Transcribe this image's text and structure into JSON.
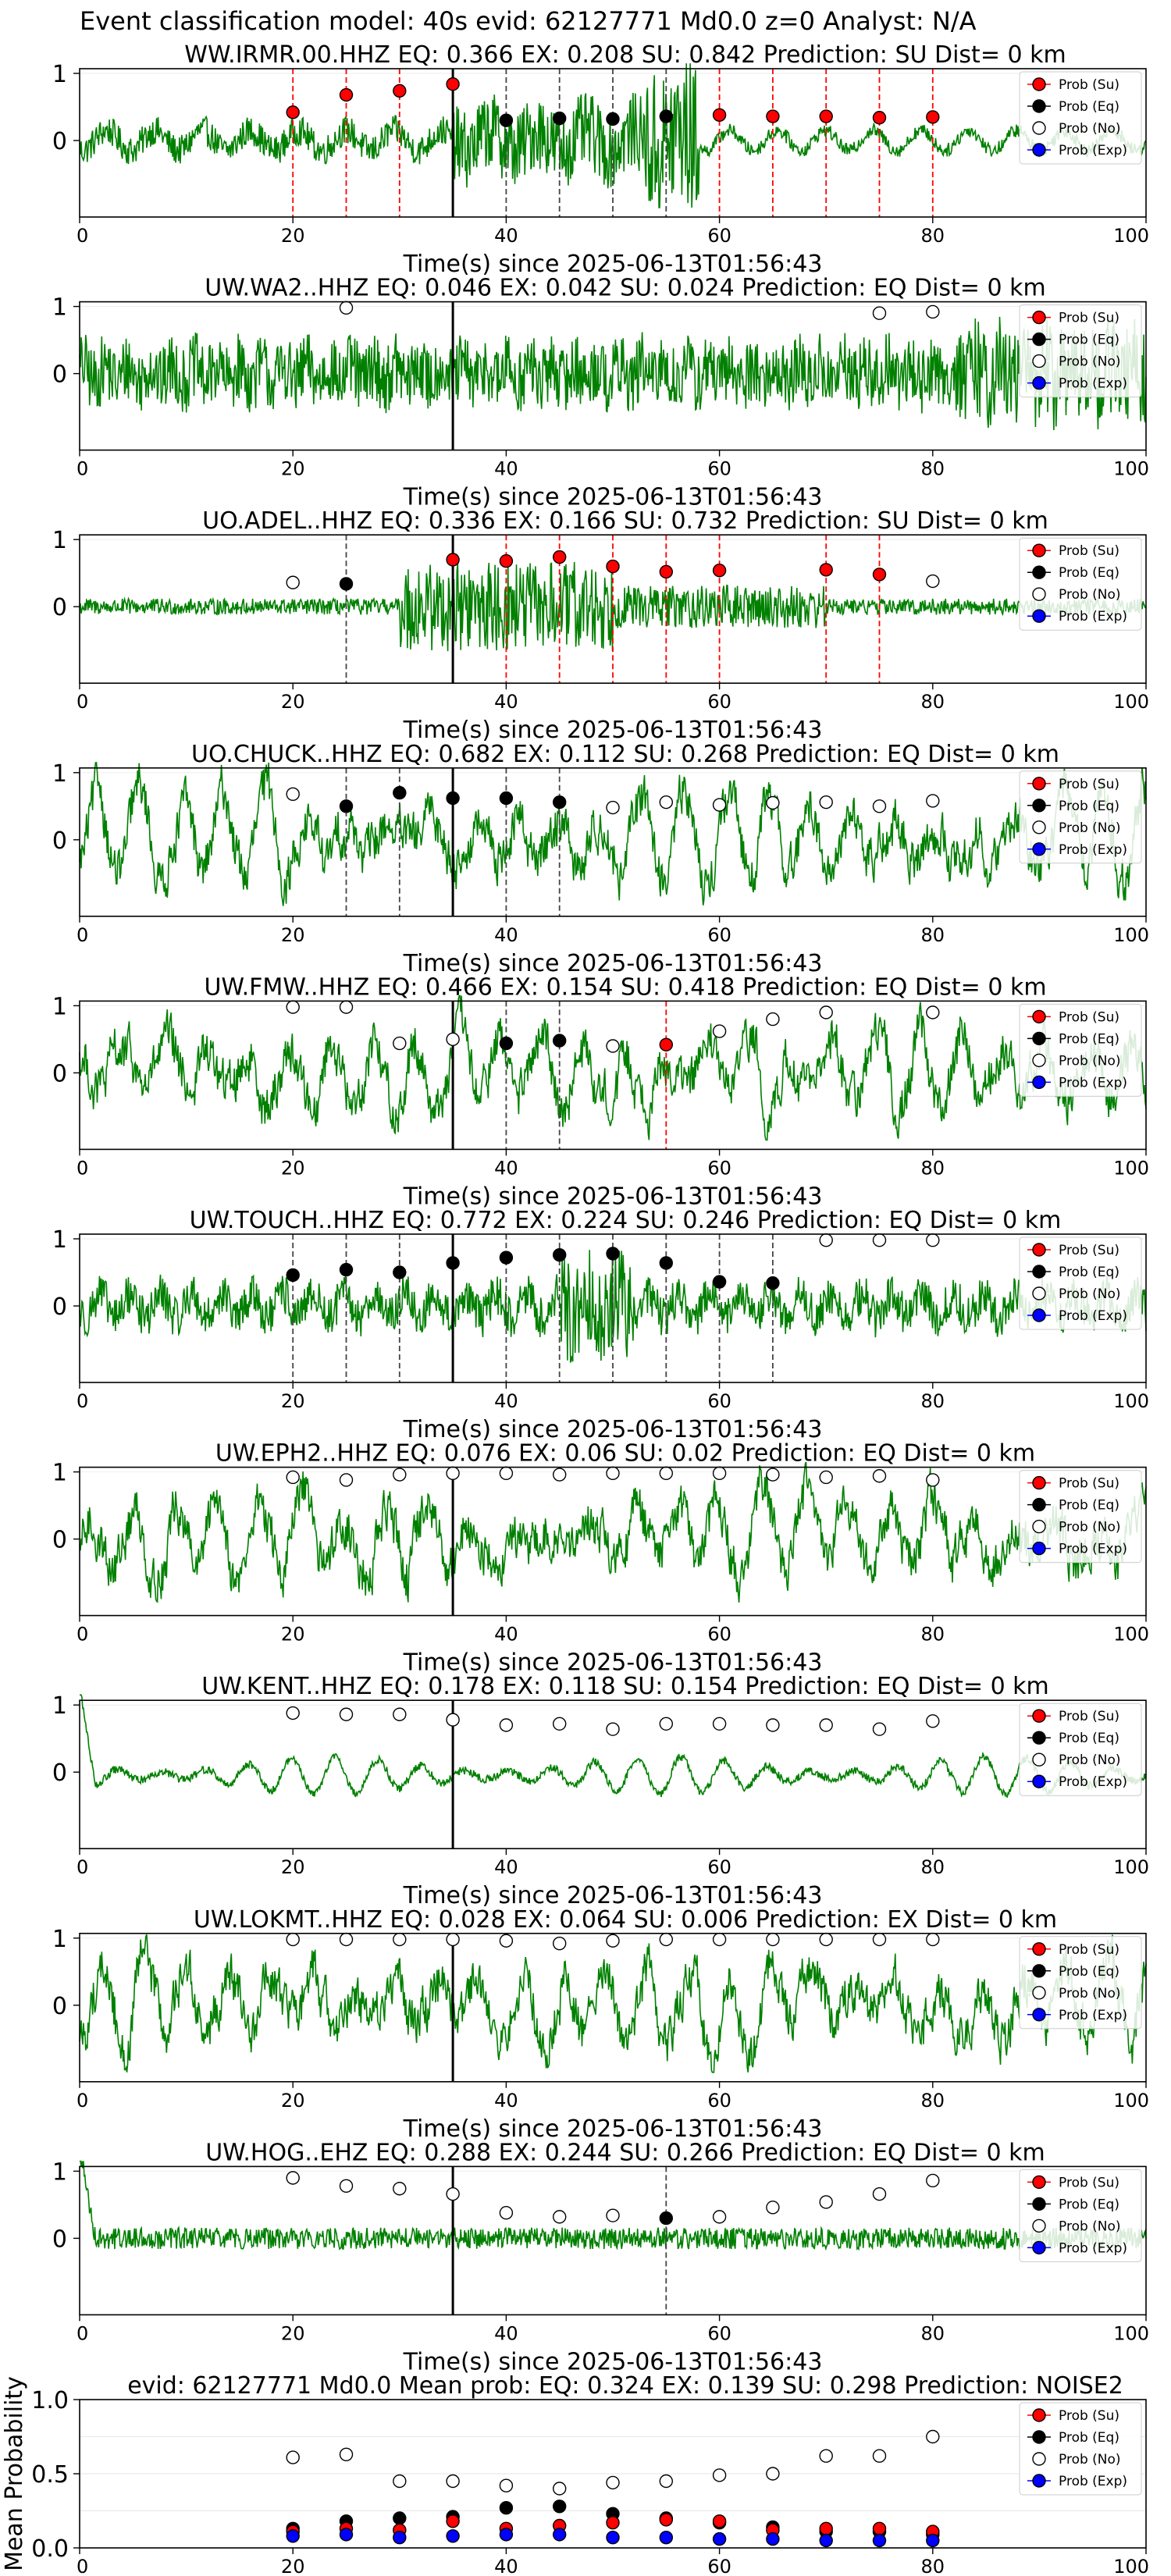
{
  "figure_title": "Event classification model: 40s evid: 62127771 Md0.0 z=0 Analyst: N/A",
  "xlabel": "Time(s) since 2025-06-13T01:56:43",
  "legend": [
    "Prob (Su)",
    "Prob (Eq)",
    "Prob (No)",
    "Prob (Exp)"
  ],
  "colors": {
    "su": "#ff0000",
    "eq": "#000000",
    "no": "#ffffff",
    "exp": "#0000ff",
    "wave": "#008000",
    "line_su": "#ff0000",
    "line_eq": "#444444",
    "origin": "#000000"
  },
  "chart_data": [
    {
      "type": "line",
      "title": "WW.IRMR.00.HHZ   EQ: 0.366  EX: 0.208  SU: 0.842   Prediction: SU    Dist= 0 km",
      "xlim": [
        0,
        100
      ],
      "xticks": [
        0,
        20,
        40,
        60,
        80,
        100
      ],
      "yticks": [
        "0",
        "1"
      ],
      "origin_x": 35,
      "waveform_style": "irmr",
      "points": [
        {
          "x": 20,
          "y": 0.42,
          "cls": "su"
        },
        {
          "x": 25,
          "y": 0.68,
          "cls": "su"
        },
        {
          "x": 30,
          "y": 0.74,
          "cls": "su"
        },
        {
          "x": 35,
          "y": 0.84,
          "cls": "su"
        },
        {
          "x": 40,
          "y": 0.3,
          "cls": "eq"
        },
        {
          "x": 45,
          "y": 0.33,
          "cls": "eq"
        },
        {
          "x": 50,
          "y": 0.32,
          "cls": "eq"
        },
        {
          "x": 55,
          "y": 0.36,
          "cls": "eq"
        },
        {
          "x": 60,
          "y": 0.38,
          "cls": "su"
        },
        {
          "x": 65,
          "y": 0.36,
          "cls": "su"
        },
        {
          "x": 70,
          "y": 0.36,
          "cls": "su"
        },
        {
          "x": 75,
          "y": 0.34,
          "cls": "su"
        },
        {
          "x": 80,
          "y": 0.35,
          "cls": "su"
        }
      ],
      "vlines": [
        {
          "x": 20,
          "cls": "su"
        },
        {
          "x": 25,
          "cls": "su"
        },
        {
          "x": 30,
          "cls": "su"
        },
        {
          "x": 35,
          "cls": "su"
        },
        {
          "x": 40,
          "cls": "eq"
        },
        {
          "x": 45,
          "cls": "eq"
        },
        {
          "x": 50,
          "cls": "eq"
        },
        {
          "x": 55,
          "cls": "eq"
        },
        {
          "x": 60,
          "cls": "su"
        },
        {
          "x": 65,
          "cls": "su"
        },
        {
          "x": 70,
          "cls": "su"
        },
        {
          "x": 75,
          "cls": "su"
        },
        {
          "x": 80,
          "cls": "su"
        }
      ]
    },
    {
      "type": "line",
      "title": "UW.WA2..HHZ   EQ: 0.046  EX: 0.042  SU: 0.024   Prediction: EQ    Dist= 0 km",
      "xlim": [
        0,
        100
      ],
      "xticks": [
        0,
        20,
        40,
        60,
        80,
        100
      ],
      "yticks": [
        "0",
        "1"
      ],
      "origin_x": 35,
      "waveform_style": "noisy",
      "points": [
        {
          "x": 25,
          "y": 0.98,
          "cls": "no"
        },
        {
          "x": 75,
          "y": 0.9,
          "cls": "no"
        },
        {
          "x": 80,
          "y": 0.92,
          "cls": "no"
        }
      ],
      "vlines": []
    },
    {
      "type": "line",
      "title": "UO.ADEL..HHZ   EQ: 0.336  EX: 0.166  SU: 0.732   Prediction: SU    Dist= 0 km",
      "xlim": [
        0,
        100
      ],
      "xticks": [
        0,
        20,
        40,
        60,
        80,
        100
      ],
      "yticks": [
        "0",
        "1"
      ],
      "origin_x": 35,
      "waveform_style": "adel",
      "points": [
        {
          "x": 20,
          "y": 0.36,
          "cls": "no"
        },
        {
          "x": 25,
          "y": 0.34,
          "cls": "eq"
        },
        {
          "x": 35,
          "y": 0.7,
          "cls": "su"
        },
        {
          "x": 40,
          "y": 0.68,
          "cls": "su"
        },
        {
          "x": 45,
          "y": 0.74,
          "cls": "su"
        },
        {
          "x": 50,
          "y": 0.6,
          "cls": "su"
        },
        {
          "x": 55,
          "y": 0.52,
          "cls": "su"
        },
        {
          "x": 60,
          "y": 0.54,
          "cls": "su"
        },
        {
          "x": 70,
          "y": 0.55,
          "cls": "su"
        },
        {
          "x": 75,
          "y": 0.48,
          "cls": "su"
        },
        {
          "x": 80,
          "y": 0.38,
          "cls": "no"
        }
      ],
      "vlines": [
        {
          "x": 25,
          "cls": "eq"
        },
        {
          "x": 40,
          "cls": "su"
        },
        {
          "x": 45,
          "cls": "su"
        },
        {
          "x": 50,
          "cls": "su"
        },
        {
          "x": 55,
          "cls": "su"
        },
        {
          "x": 60,
          "cls": "su"
        },
        {
          "x": 70,
          "cls": "su"
        },
        {
          "x": 75,
          "cls": "su"
        }
      ]
    },
    {
      "type": "line",
      "title": "UO.CHUCK..HHZ   EQ: 0.682  EX: 0.112  SU: 0.268   Prediction: EQ    Dist= 0 km",
      "xlim": [
        0,
        100
      ],
      "xticks": [
        0,
        20,
        40,
        60,
        80,
        100
      ],
      "yticks": [
        "0",
        "1"
      ],
      "origin_x": 35,
      "waveform_style": "slow",
      "points": [
        {
          "x": 20,
          "y": 0.68,
          "cls": "no"
        },
        {
          "x": 25,
          "y": 0.5,
          "cls": "eq"
        },
        {
          "x": 30,
          "y": 0.7,
          "cls": "eq"
        },
        {
          "x": 35,
          "y": 0.62,
          "cls": "eq"
        },
        {
          "x": 40,
          "y": 0.62,
          "cls": "eq"
        },
        {
          "x": 45,
          "y": 0.56,
          "cls": "eq"
        },
        {
          "x": 50,
          "y": 0.48,
          "cls": "no"
        },
        {
          "x": 55,
          "y": 0.56,
          "cls": "no"
        },
        {
          "x": 60,
          "y": 0.52,
          "cls": "no"
        },
        {
          "x": 65,
          "y": 0.55,
          "cls": "no"
        },
        {
          "x": 70,
          "y": 0.56,
          "cls": "no"
        },
        {
          "x": 75,
          "y": 0.5,
          "cls": "no"
        },
        {
          "x": 80,
          "y": 0.58,
          "cls": "no"
        }
      ],
      "vlines": [
        {
          "x": 25,
          "cls": "eq"
        },
        {
          "x": 30,
          "cls": "eq"
        },
        {
          "x": 40,
          "cls": "eq"
        },
        {
          "x": 45,
          "cls": "eq"
        }
      ]
    },
    {
      "type": "line",
      "title": "UW.FMW..HHZ   EQ: 0.466  EX: 0.154  SU: 0.418   Prediction: EQ    Dist= 0 km",
      "xlim": [
        0,
        100
      ],
      "xticks": [
        0,
        20,
        40,
        60,
        80,
        100
      ],
      "yticks": [
        "0",
        "1"
      ],
      "origin_x": 35,
      "waveform_style": "slow",
      "points": [
        {
          "x": 20,
          "y": 0.98,
          "cls": "no"
        },
        {
          "x": 25,
          "y": 0.98,
          "cls": "no"
        },
        {
          "x": 30,
          "y": 0.44,
          "cls": "no"
        },
        {
          "x": 35,
          "y": 0.5,
          "cls": "no"
        },
        {
          "x": 40,
          "y": 0.44,
          "cls": "eq"
        },
        {
          "x": 45,
          "y": 0.48,
          "cls": "eq"
        },
        {
          "x": 50,
          "y": 0.4,
          "cls": "no"
        },
        {
          "x": 55,
          "y": 0.42,
          "cls": "su"
        },
        {
          "x": 60,
          "y": 0.62,
          "cls": "no"
        },
        {
          "x": 65,
          "y": 0.8,
          "cls": "no"
        },
        {
          "x": 70,
          "y": 0.9,
          "cls": "no"
        },
        {
          "x": 80,
          "y": 0.9,
          "cls": "no"
        }
      ],
      "vlines": [
        {
          "x": 40,
          "cls": "eq"
        },
        {
          "x": 45,
          "cls": "eq"
        },
        {
          "x": 55,
          "cls": "su"
        }
      ]
    },
    {
      "type": "line",
      "title": "UW.TOUCH..HHZ   EQ: 0.772  EX: 0.224  SU: 0.246   Prediction: EQ    Dist= 0 km",
      "xlim": [
        0,
        100
      ],
      "xticks": [
        0,
        20,
        40,
        60,
        80,
        100
      ],
      "yticks": [
        "0",
        "1"
      ],
      "origin_x": 35,
      "waveform_style": "touch",
      "points": [
        {
          "x": 20,
          "y": 0.46,
          "cls": "eq"
        },
        {
          "x": 25,
          "y": 0.54,
          "cls": "eq"
        },
        {
          "x": 30,
          "y": 0.5,
          "cls": "eq"
        },
        {
          "x": 35,
          "y": 0.64,
          "cls": "eq"
        },
        {
          "x": 40,
          "y": 0.72,
          "cls": "eq"
        },
        {
          "x": 45,
          "y": 0.76,
          "cls": "eq"
        },
        {
          "x": 50,
          "y": 0.78,
          "cls": "eq"
        },
        {
          "x": 55,
          "y": 0.64,
          "cls": "eq"
        },
        {
          "x": 60,
          "y": 0.36,
          "cls": "eq"
        },
        {
          "x": 65,
          "y": 0.34,
          "cls": "eq"
        },
        {
          "x": 70,
          "y": 0.98,
          "cls": "no"
        },
        {
          "x": 75,
          "y": 0.98,
          "cls": "no"
        },
        {
          "x": 80,
          "y": 0.98,
          "cls": "no"
        }
      ],
      "vlines": [
        {
          "x": 20,
          "cls": "eq"
        },
        {
          "x": 25,
          "cls": "eq"
        },
        {
          "x": 30,
          "cls": "eq"
        },
        {
          "x": 40,
          "cls": "eq"
        },
        {
          "x": 45,
          "cls": "eq"
        },
        {
          "x": 50,
          "cls": "eq"
        },
        {
          "x": 55,
          "cls": "eq"
        },
        {
          "x": 60,
          "cls": "eq"
        },
        {
          "x": 65,
          "cls": "eq"
        }
      ]
    },
    {
      "type": "line",
      "title": "UW.EPH2..HHZ   EQ: 0.076  EX: 0.06  SU: 0.02   Prediction: EQ    Dist= 0 km",
      "xlim": [
        0,
        100
      ],
      "xticks": [
        0,
        20,
        40,
        60,
        80,
        100
      ],
      "yticks": [
        "0",
        "1"
      ],
      "origin_x": 35,
      "waveform_style": "slow",
      "points": [
        {
          "x": 20,
          "y": 0.92,
          "cls": "no"
        },
        {
          "x": 25,
          "y": 0.88,
          "cls": "no"
        },
        {
          "x": 30,
          "y": 0.96,
          "cls": "no"
        },
        {
          "x": 35,
          "y": 0.98,
          "cls": "no"
        },
        {
          "x": 40,
          "y": 0.98,
          "cls": "no"
        },
        {
          "x": 45,
          "y": 0.96,
          "cls": "no"
        },
        {
          "x": 50,
          "y": 0.98,
          "cls": "no"
        },
        {
          "x": 55,
          "y": 0.98,
          "cls": "no"
        },
        {
          "x": 60,
          "y": 0.98,
          "cls": "no"
        },
        {
          "x": 65,
          "y": 0.96,
          "cls": "no"
        },
        {
          "x": 70,
          "y": 0.92,
          "cls": "no"
        },
        {
          "x": 75,
          "y": 0.94,
          "cls": "no"
        },
        {
          "x": 80,
          "y": 0.88,
          "cls": "no"
        }
      ],
      "vlines": []
    },
    {
      "type": "line",
      "title": "UW.KENT..HHZ   EQ: 0.178  EX: 0.118  SU: 0.154   Prediction: EQ    Dist= 0 km",
      "xlim": [
        0,
        100
      ],
      "xticks": [
        0,
        20,
        40,
        60,
        80,
        100
      ],
      "yticks": [
        "0",
        "1"
      ],
      "origin_x": 35,
      "waveform_style": "kent",
      "points": [
        {
          "x": 20,
          "y": 0.88,
          "cls": "no"
        },
        {
          "x": 25,
          "y": 0.86,
          "cls": "no"
        },
        {
          "x": 30,
          "y": 0.86,
          "cls": "no"
        },
        {
          "x": 35,
          "y": 0.78,
          "cls": "no"
        },
        {
          "x": 40,
          "y": 0.7,
          "cls": "no"
        },
        {
          "x": 45,
          "y": 0.72,
          "cls": "no"
        },
        {
          "x": 50,
          "y": 0.64,
          "cls": "no"
        },
        {
          "x": 55,
          "y": 0.72,
          "cls": "no"
        },
        {
          "x": 60,
          "y": 0.72,
          "cls": "no"
        },
        {
          "x": 65,
          "y": 0.7,
          "cls": "no"
        },
        {
          "x": 70,
          "y": 0.7,
          "cls": "no"
        },
        {
          "x": 75,
          "y": 0.64,
          "cls": "no"
        },
        {
          "x": 80,
          "y": 0.76,
          "cls": "no"
        }
      ],
      "vlines": []
    },
    {
      "type": "line",
      "title": "UW.LOKMT..HHZ   EQ: 0.028  EX: 0.064  SU: 0.006   Prediction: EX    Dist= 0 km",
      "xlim": [
        0,
        100
      ],
      "xticks": [
        0,
        20,
        40,
        60,
        80,
        100
      ],
      "yticks": [
        "0",
        "1"
      ],
      "origin_x": 35,
      "waveform_style": "slow",
      "points": [
        {
          "x": 20,
          "y": 0.98,
          "cls": "no"
        },
        {
          "x": 25,
          "y": 0.98,
          "cls": "no"
        },
        {
          "x": 30,
          "y": 0.98,
          "cls": "no"
        },
        {
          "x": 35,
          "y": 0.98,
          "cls": "no"
        },
        {
          "x": 40,
          "y": 0.96,
          "cls": "no"
        },
        {
          "x": 45,
          "y": 0.92,
          "cls": "no"
        },
        {
          "x": 50,
          "y": 0.96,
          "cls": "no"
        },
        {
          "x": 55,
          "y": 0.98,
          "cls": "no"
        },
        {
          "x": 60,
          "y": 0.98,
          "cls": "no"
        },
        {
          "x": 65,
          "y": 0.98,
          "cls": "no"
        },
        {
          "x": 70,
          "y": 0.98,
          "cls": "no"
        },
        {
          "x": 75,
          "y": 0.98,
          "cls": "no"
        },
        {
          "x": 80,
          "y": 0.98,
          "cls": "no"
        }
      ],
      "vlines": []
    },
    {
      "type": "line",
      "title": "UW.HOG..EHZ   EQ: 0.288  EX: 0.244  SU: 0.266   Prediction: EQ    Dist= 0 km",
      "xlim": [
        0,
        100
      ],
      "xticks": [
        0,
        20,
        40,
        60,
        80,
        100
      ],
      "yticks": [
        "0",
        "1"
      ],
      "origin_x": 35,
      "waveform_style": "hog",
      "points": [
        {
          "x": 20,
          "y": 0.9,
          "cls": "no"
        },
        {
          "x": 25,
          "y": 0.78,
          "cls": "no"
        },
        {
          "x": 30,
          "y": 0.74,
          "cls": "no"
        },
        {
          "x": 35,
          "y": 0.66,
          "cls": "no"
        },
        {
          "x": 40,
          "y": 0.38,
          "cls": "no"
        },
        {
          "x": 45,
          "y": 0.32,
          "cls": "no"
        },
        {
          "x": 50,
          "y": 0.34,
          "cls": "no"
        },
        {
          "x": 55,
          "y": 0.3,
          "cls": "eq"
        },
        {
          "x": 60,
          "y": 0.32,
          "cls": "no"
        },
        {
          "x": 65,
          "y": 0.46,
          "cls": "no"
        },
        {
          "x": 70,
          "y": 0.54,
          "cls": "no"
        },
        {
          "x": 75,
          "y": 0.66,
          "cls": "no"
        },
        {
          "x": 80,
          "y": 0.86,
          "cls": "no"
        }
      ],
      "vlines": [
        {
          "x": 55,
          "cls": "eq"
        }
      ]
    },
    {
      "type": "scatter",
      "title": "evid: 62127771  Md0.0   Mean prob:   EQ: 0.324  EX: 0.139  SU: 0.298   Prediction: NOISE2",
      "ylabel": "Mean Probability",
      "xlim": [
        0,
        100
      ],
      "ylim": [
        0,
        1
      ],
      "xticks": [
        0,
        20,
        40,
        60,
        80,
        100
      ],
      "yticks": [
        "0.0",
        "0.5",
        "1.0"
      ],
      "x": [
        20,
        25,
        30,
        35,
        40,
        45,
        50,
        55,
        60,
        65,
        70,
        75,
        80
      ],
      "series": [
        {
          "name": "Prob (No)",
          "cls": "no",
          "values": [
            0.61,
            0.63,
            0.45,
            0.45,
            0.42,
            0.4,
            0.44,
            0.45,
            0.49,
            0.5,
            0.62,
            0.62,
            0.75
          ]
        },
        {
          "name": "Prob (Eq)",
          "cls": "eq",
          "values": [
            0.13,
            0.18,
            0.2,
            0.21,
            0.27,
            0.28,
            0.23,
            0.2,
            0.17,
            0.14,
            0.11,
            0.11,
            0.09
          ]
        },
        {
          "name": "Prob (Su)",
          "cls": "su",
          "values": [
            0.11,
            0.13,
            0.12,
            0.18,
            0.13,
            0.15,
            0.17,
            0.19,
            0.18,
            0.12,
            0.13,
            0.13,
            0.11
          ]
        },
        {
          "name": "Prob (Exp)",
          "cls": "exp",
          "values": [
            0.08,
            0.09,
            0.07,
            0.08,
            0.09,
            0.09,
            0.07,
            0.07,
            0.06,
            0.06,
            0.05,
            0.05,
            0.05
          ]
        }
      ]
    }
  ]
}
